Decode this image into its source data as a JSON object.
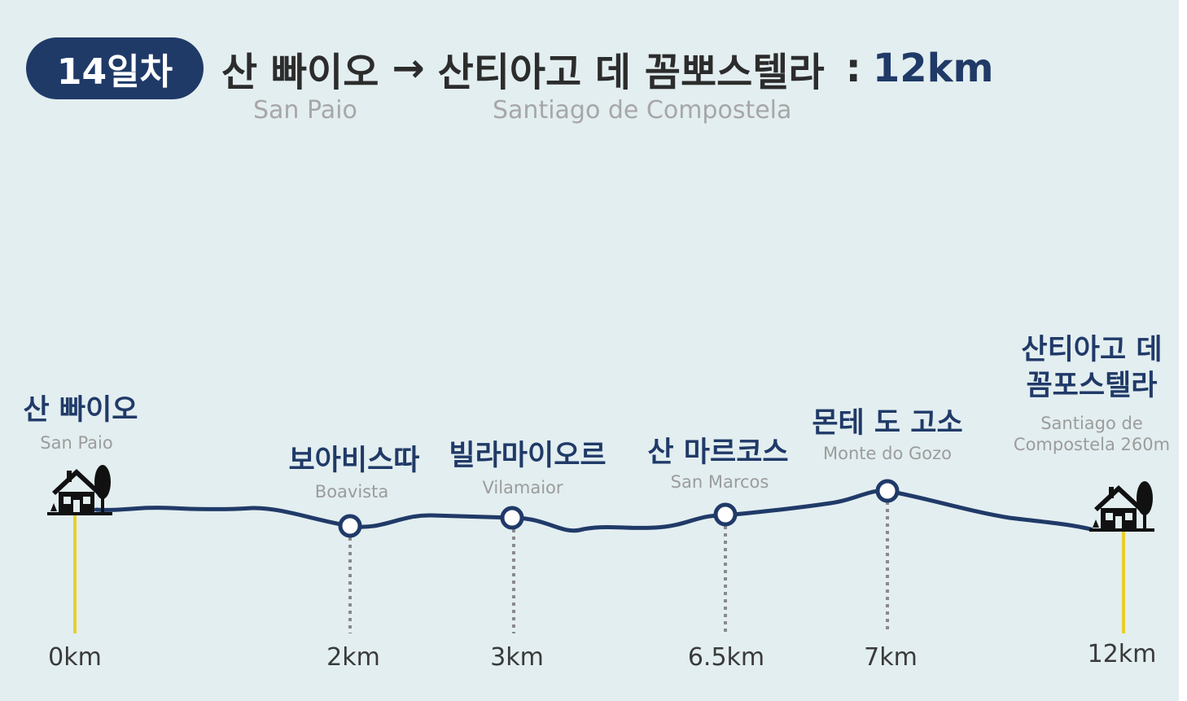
{
  "header": {
    "day_badge": "14일차",
    "from_ko": "산 빠이오",
    "arrow": "→",
    "to_ko": "산티아고 데 꼼뽀스텔라",
    "colon": ":",
    "distance": "12km",
    "from_en": "San Paio",
    "to_en": "Santiago de Compostela"
  },
  "colors": {
    "route": "#203a68",
    "start_end_line": "#e8cf2a",
    "waypoint_line": "#8a8a8a",
    "background": "#e3eef0"
  },
  "stops": [
    {
      "name_ko": "산 빠이오",
      "name_en": "San Paio",
      "km_label": "0km",
      "kind": "start",
      "icon": "house-tree-icon"
    },
    {
      "name_ko": "보아비스따",
      "name_en": "Boavista",
      "km_label": "2km",
      "kind": "waypoint"
    },
    {
      "name_ko": "빌라마이오르",
      "name_en": "Vilamaior",
      "km_label": "3km",
      "kind": "waypoint"
    },
    {
      "name_ko": "산 마르코스",
      "name_en": "San Marcos",
      "km_label": "6.5km",
      "kind": "waypoint"
    },
    {
      "name_ko": "몬테 도 고소",
      "name_en": "Monte do Gozo",
      "km_label": "7km",
      "kind": "waypoint"
    },
    {
      "name_ko": "산티아고 데\n꼼포스텔라",
      "name_en": "Santiago de\nCompostela 260m",
      "km_label": "12km",
      "kind": "end",
      "icon": "house-tree-icon"
    }
  ]
}
